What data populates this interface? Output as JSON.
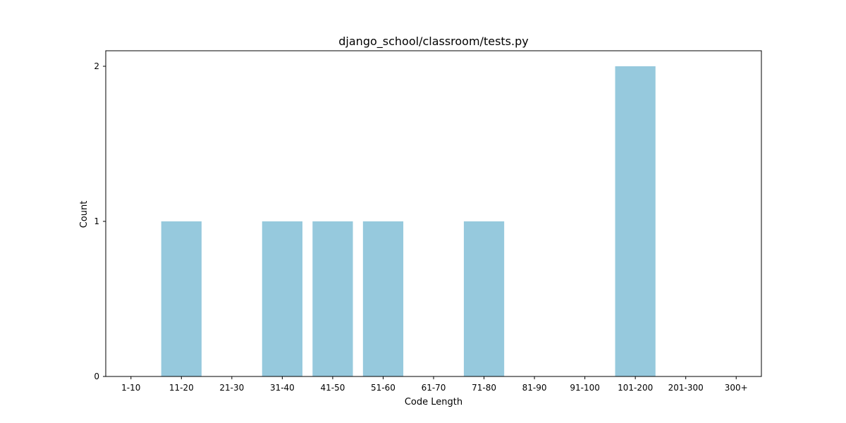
{
  "chart_data": {
    "type": "bar",
    "title": "django_school/classroom/tests.py",
    "xlabel": "Code Length",
    "ylabel": "Count",
    "categories": [
      "1-10",
      "11-20",
      "21-30",
      "31-40",
      "41-50",
      "51-60",
      "61-70",
      "71-80",
      "81-90",
      "91-100",
      "101-200",
      "201-300",
      "300+"
    ],
    "values": [
      0,
      1,
      0,
      1,
      1,
      1,
      0,
      1,
      0,
      0,
      2,
      0,
      0
    ],
    "ylim": [
      0,
      2.1
    ],
    "yticks": [
      0,
      1,
      2
    ],
    "grid": false,
    "bar_color": "#96c9dd"
  }
}
